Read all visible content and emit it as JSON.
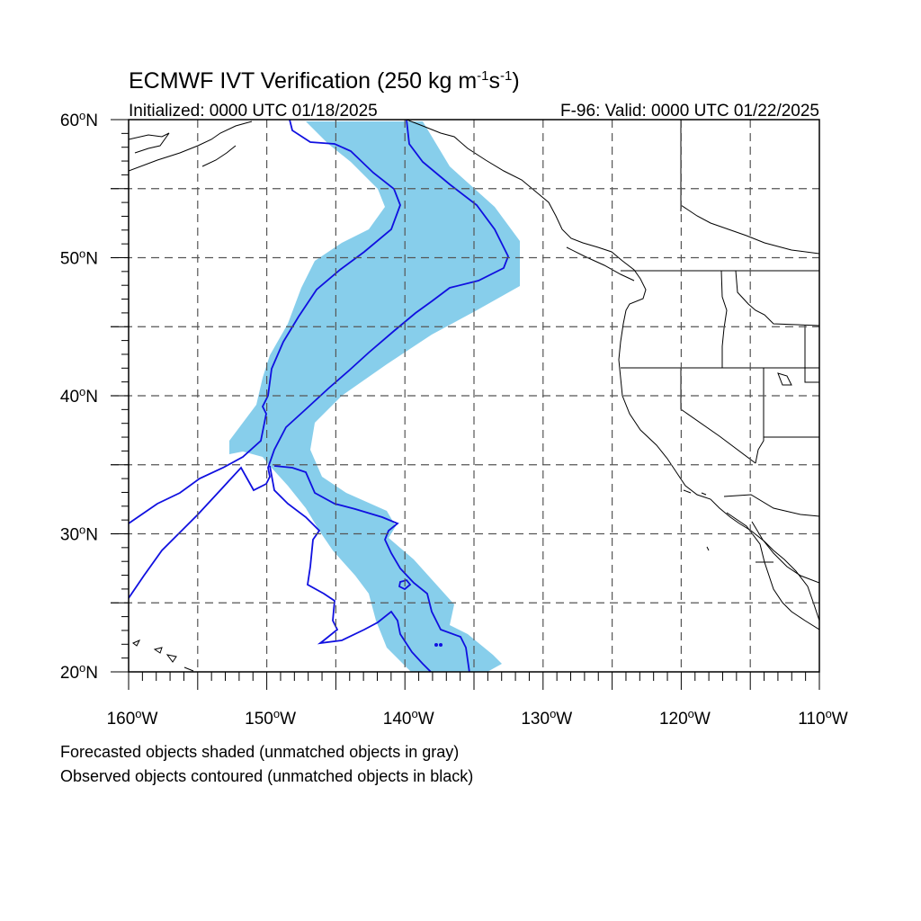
{
  "title": "ECMWF IVT Verification (250 kg m",
  "title_unit_exp1": "-1",
  "title_unit_mid": "s",
  "title_unit_exp2": "-1",
  "title_close": ")",
  "initialized": "Initialized: 0000 UTC 01/18/2025",
  "valid": "F-96: Valid: 0000 UTC 01/22/2025",
  "lat_labels": [
    {
      "deg": "60",
      "lat": 60
    },
    {
      "deg": "50",
      "lat": 50
    },
    {
      "deg": "40",
      "lat": 40
    },
    {
      "deg": "30",
      "lat": 30
    },
    {
      "deg": "20",
      "lat": 20
    }
  ],
  "lat_suffix": "N",
  "lon_labels": [
    {
      "deg": "160",
      "lon": -160
    },
    {
      "deg": "150",
      "lon": -150
    },
    {
      "deg": "140",
      "lon": -140
    },
    {
      "deg": "130",
      "lon": -130
    },
    {
      "deg": "120",
      "lon": -120
    },
    {
      "deg": "110",
      "lon": -110
    }
  ],
  "lon_suffix": "W",
  "extent": {
    "lon_min": -160,
    "lon_max": -110,
    "lat_min": 20,
    "lat_max": 60
  },
  "grid": {
    "lon_step": 5,
    "lat_step": 5
  },
  "footnote_1": "Forecasted objects shaded (unmatched objects in gray)",
  "footnote_2": "Observed objects contoured (unmatched objects in black)",
  "colors": {
    "forecast_fill": "#87ceeb",
    "observed_contour": "#1010e0",
    "coast": "#000000"
  }
}
